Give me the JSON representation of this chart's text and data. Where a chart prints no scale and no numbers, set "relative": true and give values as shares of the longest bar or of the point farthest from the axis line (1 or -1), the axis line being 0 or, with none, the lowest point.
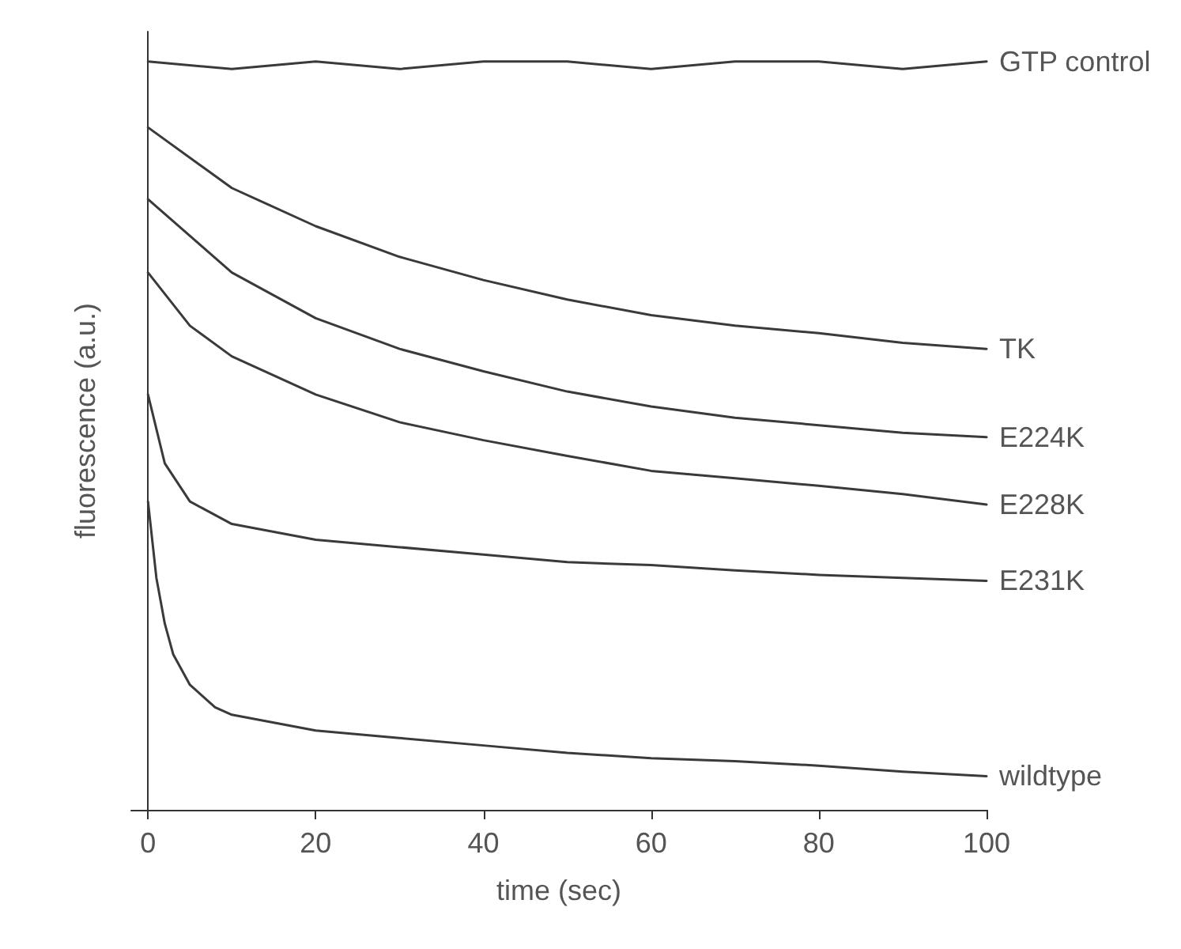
{
  "chart_data": {
    "type": "line",
    "relative": true,
    "xlabel": "time (sec)",
    "ylabel": "fluorescence (a.u.)",
    "xlim": [
      -2,
      100
    ],
    "xticks": [
      0,
      20,
      40,
      60,
      80,
      100
    ],
    "legend": false,
    "marker": "none",
    "line_style": "solid",
    "series": [
      {
        "name": "GTP control",
        "color": "#3a3a3a",
        "x": [
          0,
          10,
          20,
          30,
          40,
          50,
          60,
          70,
          80,
          90,
          100
        ],
        "values": [
          1,
          0.99,
          1,
          0.99,
          1,
          1,
          0.99,
          1,
          1,
          0.99,
          1
        ]
      },
      {
        "name": "TK",
        "color": "#3a3a3a",
        "x": [
          0,
          10,
          20,
          30,
          40,
          50,
          60,
          70,
          80,
          90,
          100
        ],
        "values": [
          0.912,
          0.831,
          0.78,
          0.739,
          0.708,
          0.682,
          0.661,
          0.647,
          0.637,
          0.624,
          0.616
        ]
      },
      {
        "name": "E224K",
        "color": "#3a3a3a",
        "x": [
          0,
          10,
          20,
          30,
          40,
          50,
          60,
          70,
          80,
          90,
          100
        ],
        "values": [
          0.816,
          0.718,
          0.657,
          0.616,
          0.586,
          0.559,
          0.539,
          0.524,
          0.514,
          0.504,
          0.498
        ]
      },
      {
        "name": "E228K",
        "color": "#3a3a3a",
        "x": [
          0,
          5,
          10,
          20,
          30,
          40,
          50,
          60,
          70,
          80,
          90,
          100
        ],
        "values": [
          0.718,
          0.647,
          0.606,
          0.555,
          0.518,
          0.494,
          0.473,
          0.453,
          0.443,
          0.433,
          0.422,
          0.408
        ]
      },
      {
        "name": "E231K",
        "color": "#3a3a3a",
        "x": [
          0,
          2,
          5,
          10,
          20,
          30,
          40,
          50,
          60,
          70,
          80,
          90,
          100
        ],
        "values": [
          0.555,
          0.463,
          0.412,
          0.382,
          0.361,
          0.351,
          0.341,
          0.331,
          0.327,
          0.32,
          0.314,
          0.31,
          0.306
        ]
      },
      {
        "name": "wildtype",
        "color": "#3a3a3a",
        "x": [
          0,
          1,
          2,
          3,
          5,
          8,
          10,
          20,
          30,
          40,
          50,
          60,
          70,
          80,
          90,
          100
        ],
        "values": [
          0.412,
          0.31,
          0.249,
          0.208,
          0.167,
          0.137,
          0.127,
          0.106,
          0.096,
          0.086,
          0.076,
          0.069,
          0.065,
          0.059,
          0.051,
          0.045
        ]
      }
    ]
  }
}
